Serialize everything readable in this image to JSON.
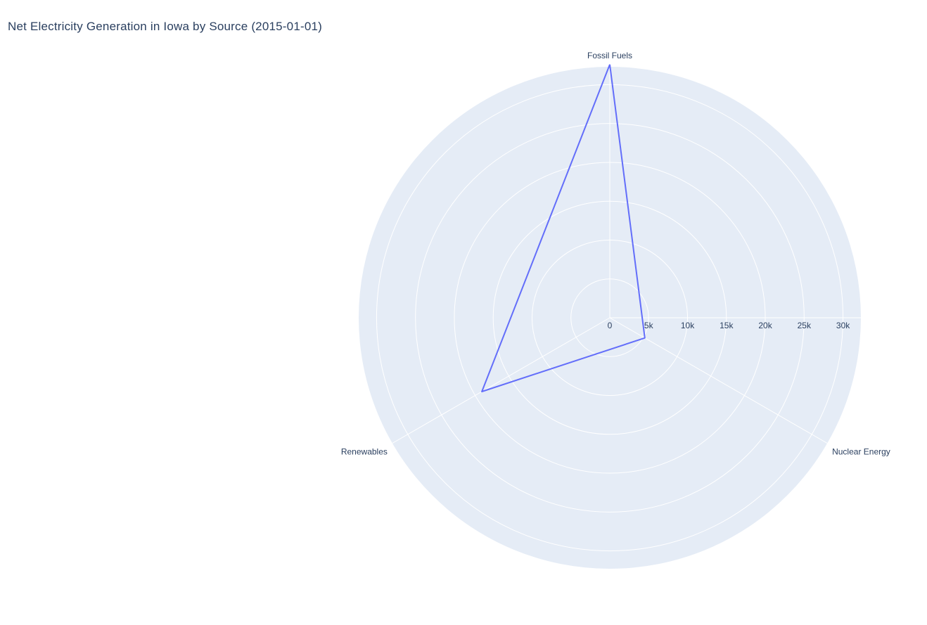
{
  "chart_data": {
    "type": "radar",
    "title": "Net Electricity Generation in Iowa by Source (2015-01-01)",
    "categories": [
      "Fossil Fuels",
      "Nuclear Energy",
      "Renewables"
    ],
    "series": [
      {
        "values": [
          32600,
          5200,
          19000
        ],
        "color": "#636efa"
      }
    ],
    "radial_range": [
      0,
      32300
    ],
    "radial_ticks": [
      0,
      5000,
      10000,
      15000,
      20000,
      25000,
      30000
    ],
    "radial_tick_labels": [
      "0",
      "5k",
      "10k",
      "15k",
      "20k",
      "25k",
      "30k"
    ],
    "polar_bg_color": "#e5ecf6",
    "grid_color": "#ffffff",
    "text_color": "#2a3f5f",
    "grid": true,
    "legend": "none"
  }
}
